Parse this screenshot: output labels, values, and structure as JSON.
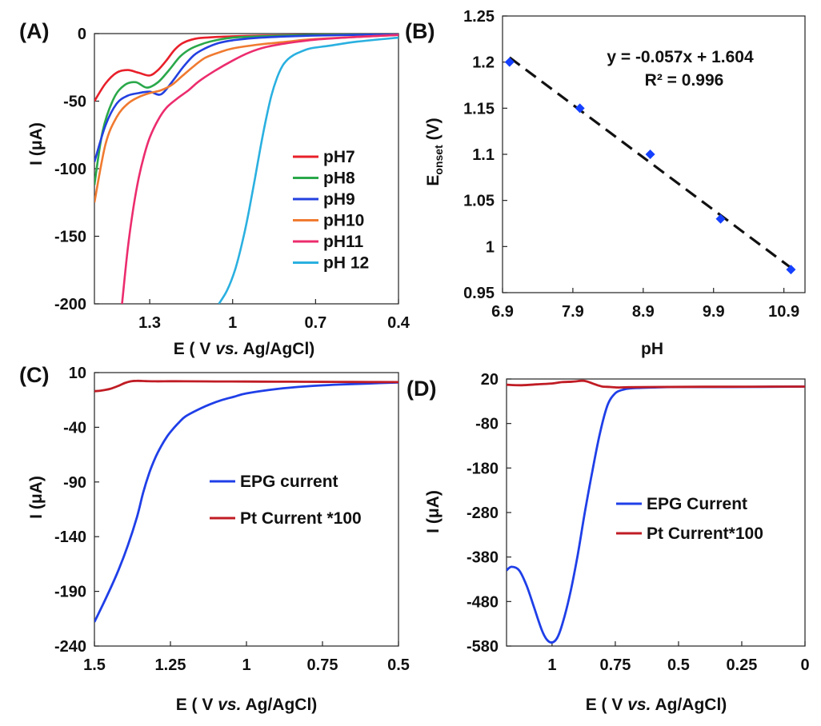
{
  "panel_labels": [
    "(A)",
    "(B)",
    "(C)",
    "(D)"
  ],
  "colors": {
    "pH7": "#e8202a",
    "pH8": "#2aa84a",
    "pH9": "#2340e0",
    "pH10": "#f07a30",
    "pH11": "#ec2c6e",
    "pH12": "#2ab0e0",
    "blue": "#1f3fe8",
    "red": "#c01c24",
    "marker": "#1540ff"
  },
  "chart_data": [
    {
      "id": "A",
      "type": "line",
      "xlabel_parts": [
        "E ( V ",
        "vs.",
        " Ag/AgCl)"
      ],
      "ylabel": "I (μA)",
      "xlim": [
        1.5,
        0.4
      ],
      "ylim": [
        -200,
        0
      ],
      "xticks": [
        1.3,
        1,
        0.7,
        0.4
      ],
      "xtick_labels": [
        "1.3",
        "1",
        "0.7",
        "0.4"
      ],
      "yticks": [
        0,
        -50,
        -100,
        -150,
        -200
      ],
      "ytick_labels": [
        "0",
        "-50",
        "-100",
        "-150",
        "-200"
      ],
      "legend_position": "right",
      "series": [
        {
          "name": "pH7",
          "x": [
            1.5,
            1.46,
            1.42,
            1.38,
            1.34,
            1.3,
            1.27,
            1.24,
            1.21,
            1.18,
            1.14,
            1.1,
            1.0,
            0.9,
            0.7,
            0.4
          ],
          "y": [
            -50,
            -37,
            -29,
            -27,
            -29,
            -31,
            -27,
            -20,
            -12,
            -7,
            -4,
            -3,
            -2,
            -1.5,
            -1,
            -0.5
          ]
        },
        {
          "name": "pH8",
          "x": [
            1.5,
            1.47,
            1.43,
            1.39,
            1.35,
            1.31,
            1.27,
            1.23,
            1.19,
            1.15,
            1.1,
            1.05,
            1.0,
            0.9,
            0.7,
            0.4
          ],
          "y": [
            -112,
            -72,
            -48,
            -38,
            -36,
            -40,
            -36,
            -27,
            -17,
            -11,
            -7,
            -4.5,
            -3,
            -2,
            -1,
            -0.5
          ]
        },
        {
          "name": "pH9",
          "x": [
            1.5,
            1.46,
            1.42,
            1.38,
            1.34,
            1.3,
            1.26,
            1.22,
            1.18,
            1.14,
            1.1,
            1.05,
            1.0,
            0.9,
            0.7,
            0.4
          ],
          "y": [
            -95,
            -68,
            -52,
            -46,
            -44,
            -43,
            -45,
            -36,
            -25,
            -16,
            -11,
            -7,
            -5,
            -3,
            -1.5,
            -0.5
          ]
        },
        {
          "name": "pH10",
          "x": [
            1.5,
            1.46,
            1.42,
            1.38,
            1.34,
            1.3,
            1.26,
            1.22,
            1.18,
            1.14,
            1.1,
            1.05,
            1.0,
            0.9,
            0.8,
            0.7,
            0.4
          ],
          "y": [
            -125,
            -82,
            -62,
            -52,
            -47,
            -44,
            -42,
            -38,
            -31,
            -24,
            -18,
            -14,
            -11,
            -8,
            -6,
            -4,
            -1
          ]
        },
        {
          "name": "pH11",
          "x": [
            1.4,
            1.38,
            1.36,
            1.34,
            1.32,
            1.3,
            1.27,
            1.24,
            1.2,
            1.16,
            1.12,
            1.06,
            1.0,
            0.94,
            0.88,
            0.8,
            0.7,
            0.55,
            0.4
          ],
          "y": [
            -200,
            -160,
            -130,
            -107,
            -90,
            -77,
            -64,
            -55,
            -48,
            -42,
            -35,
            -27,
            -20,
            -14,
            -10,
            -7,
            -4.5,
            -2.5,
            -1
          ]
        },
        {
          "name": "pH 12",
          "x": [
            1.05,
            1.02,
            0.99,
            0.96,
            0.94,
            0.92,
            0.9,
            0.88,
            0.86,
            0.84,
            0.82,
            0.8,
            0.78,
            0.76,
            0.72,
            0.65,
            0.55,
            0.4
          ],
          "y": [
            -200,
            -190,
            -174,
            -150,
            -130,
            -108,
            -85,
            -64,
            -46,
            -33,
            -24,
            -19,
            -16,
            -14,
            -11,
            -9,
            -6,
            -3
          ]
        }
      ]
    },
    {
      "id": "B",
      "type": "scatter",
      "xlabel": "pH",
      "ylabel_main": "E",
      "ylabel_sub": "onset",
      "ylabel_unit": " (V)",
      "xlim": [
        6.9,
        11.2
      ],
      "ylim": [
        0.95,
        1.25
      ],
      "xticks": [
        6.9,
        7.9,
        8.9,
        9.9,
        10.9
      ],
      "xtick_labels": [
        "6.9",
        "7.9",
        "8.9",
        "9.9",
        "10.9"
      ],
      "yticks": [
        0.95,
        1,
        1.05,
        1.1,
        1.15,
        1.2,
        1.25
      ],
      "ytick_labels": [
        "0.95",
        "1",
        "1.05",
        "1.1",
        "1.15",
        "1.2",
        "1.25"
      ],
      "x": [
        7,
        8,
        9,
        10,
        11
      ],
      "y": [
        1.2,
        1.15,
        1.1,
        1.03,
        0.975
      ],
      "trendline": {
        "slope": -0.057,
        "intercept": 1.604,
        "x_range": [
          7,
          11
        ]
      },
      "equation": "y = -0.057x + 1.604",
      "r_squared": "R² = 0.996"
    },
    {
      "id": "C",
      "type": "line",
      "xlabel_parts": [
        "E ( V ",
        "vs.",
        " Ag/AgCl)"
      ],
      "ylabel": "I (μA)",
      "xlim": [
        1.5,
        0.5
      ],
      "ylim": [
        -240,
        10
      ],
      "xticks": [
        1.5,
        1.25,
        1,
        0.75,
        0.5
      ],
      "xtick_labels": [
        "1.5",
        "1.25",
        "1",
        "0.75",
        "0.5"
      ],
      "yticks": [
        10,
        -40,
        -90,
        -140,
        -190,
        -240
      ],
      "ytick_labels": [
        "10",
        "-40",
        "-90",
        "-140",
        "-190",
        "-240"
      ],
      "legend_position": "right",
      "series": [
        {
          "name": "EPG current",
          "x": [
            1.5,
            1.46,
            1.42,
            1.39,
            1.36,
            1.34,
            1.32,
            1.3,
            1.28,
            1.26,
            1.24,
            1.22,
            1.2,
            1.16,
            1.12,
            1.08,
            1.04,
            1.0,
            0.9,
            0.8,
            0.7,
            0.6,
            0.5
          ],
          "y": [
            -218,
            -195,
            -170,
            -148,
            -122,
            -100,
            -82,
            -68,
            -57,
            -48,
            -41,
            -35,
            -30,
            -24,
            -19,
            -15,
            -12,
            -9,
            -5,
            -2.5,
            -1,
            0,
            1
          ]
        },
        {
          "name": "Pt Current *100",
          "x": [
            1.5,
            1.48,
            1.45,
            1.42,
            1.4,
            1.38,
            1.36,
            1.33,
            1.3,
            1.25,
            1.2,
            1.1,
            1.0,
            0.9,
            0.8,
            0.7,
            0.6,
            0.5
          ],
          "y": [
            -7,
            -6.5,
            -5,
            -2,
            0.5,
            2,
            2.5,
            2.2,
            2,
            2.1,
            2,
            1.9,
            1.8,
            1.7,
            1.6,
            1.5,
            1.4,
            1.3
          ]
        }
      ]
    },
    {
      "id": "D",
      "type": "line",
      "xlabel_parts": [
        "E ( V ",
        "vs.",
        " Ag/AgCl)"
      ],
      "ylabel": "I (μA)",
      "xlim": [
        1.18,
        0
      ],
      "ylim": [
        -580,
        20
      ],
      "xticks": [
        1,
        0.75,
        0.5,
        0.25,
        0
      ],
      "xtick_labels": [
        "1",
        "0.75",
        "0.5",
        "0.25",
        "0"
      ],
      "yticks": [
        20,
        -80,
        -180,
        -280,
        -380,
        -480,
        -580
      ],
      "ytick_labels": [
        "20",
        "-80",
        "-180",
        "-280",
        "-380",
        "-480",
        "-580"
      ],
      "legend_position": "right",
      "series": [
        {
          "name": "EPG Current",
          "x": [
            1.18,
            1.16,
            1.13,
            1.1,
            1.07,
            1.04,
            1.02,
            1.0,
            0.98,
            0.96,
            0.93,
            0.9,
            0.87,
            0.84,
            0.81,
            0.78,
            0.75,
            0.72,
            0.69,
            0.65,
            0.6,
            0.5,
            0.3,
            0.0
          ],
          "y": [
            -410,
            -402,
            -410,
            -445,
            -495,
            -545,
            -566,
            -572,
            -562,
            -532,
            -466,
            -380,
            -278,
            -185,
            -100,
            -38,
            -12,
            -4,
            -1,
            0,
            1,
            2,
            2,
            3
          ]
        },
        {
          "name": "Pt Current*100",
          "x": [
            1.18,
            1.12,
            1.06,
            1.0,
            0.96,
            0.92,
            0.88,
            0.86,
            0.84,
            0.82,
            0.8,
            0.77,
            0.74,
            0.7,
            0.6,
            0.4,
            0.2,
            0.0
          ],
          "y": [
            7,
            6,
            8,
            10,
            13,
            14,
            16,
            14,
            10,
            6,
            3,
            2,
            1,
            1.5,
            2,
            2.5,
            2.8,
            3
          ]
        }
      ]
    }
  ]
}
